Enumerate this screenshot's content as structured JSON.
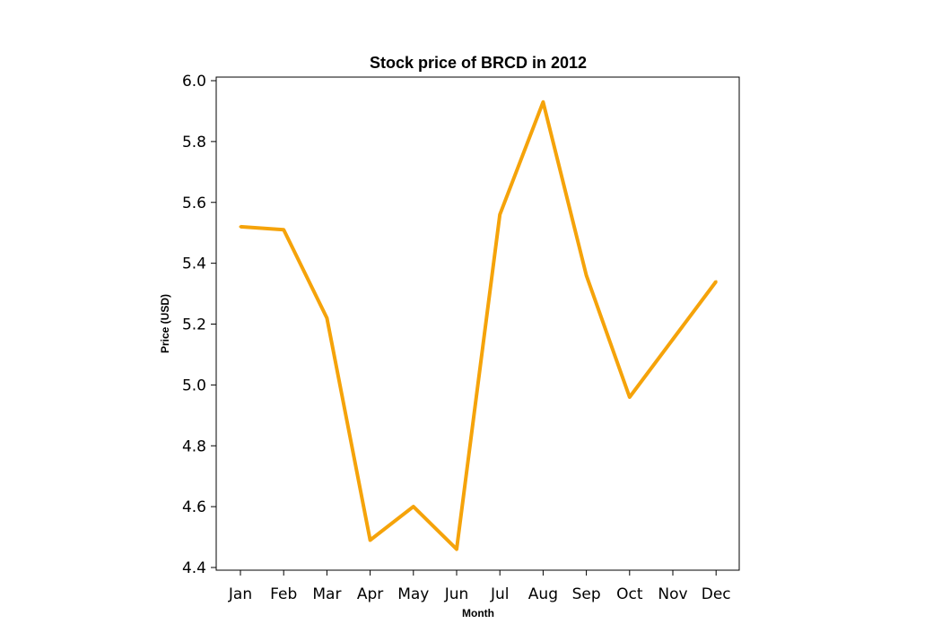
{
  "chart_data": {
    "type": "line",
    "title": "Stock price of BRCD in 2012",
    "xlabel": "Month",
    "ylabel": "Price (USD)",
    "categories": [
      "Jan",
      "Feb",
      "Mar",
      "Apr",
      "May",
      "Jun",
      "Jul",
      "Aug",
      "Sep",
      "Oct",
      "Nov",
      "Dec"
    ],
    "series": [
      {
        "name": "",
        "values": [
          5.52,
          5.51,
          5.22,
          4.49,
          4.6,
          4.46,
          5.56,
          5.93,
          5.36,
          4.96,
          5.15,
          5.34
        ]
      }
    ],
    "ylim": [
      4.4,
      6.0
    ],
    "yticks": [
      "4.4",
      "4.6",
      "4.8",
      "5.0",
      "5.2",
      "5.4",
      "5.6",
      "5.8",
      "6.0"
    ],
    "grid": false,
    "line_color": "#f5a30a"
  }
}
